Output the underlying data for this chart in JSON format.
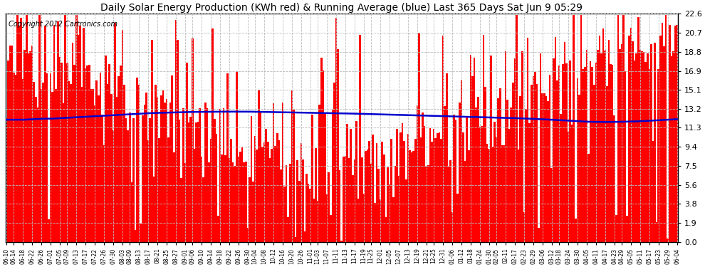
{
  "title": "Daily Solar Energy Production (KWh red) & Running Average (blue) Last 365 Days Sat Jun 9 05:29",
  "copyright": "Copyright 2012 Cartronics.com",
  "yticks": [
    0.0,
    1.9,
    3.8,
    5.6,
    7.5,
    9.4,
    11.3,
    13.2,
    15.1,
    16.9,
    18.8,
    20.7,
    22.6
  ],
  "ymax": 22.6,
  "ymin": 0.0,
  "bar_color": "#ff0000",
  "avg_color": "#0000cc",
  "bg_color": "#ffffff",
  "grid_color": "#bbbbbb",
  "title_fontsize": 10,
  "copyright_fontsize": 7,
  "x_labels": [
    "06-10",
    "06-14",
    "06-18",
    "06-22",
    "06-26",
    "07-01",
    "07-05",
    "07-09",
    "07-13",
    "07-17",
    "07-22",
    "07-26",
    "07-30",
    "08-03",
    "08-09",
    "08-13",
    "08-17",
    "08-21",
    "08-25",
    "08-27",
    "09-01",
    "09-06",
    "09-10",
    "09-14",
    "09-18",
    "09-22",
    "09-26",
    "09-30",
    "10-04",
    "10-08",
    "10-12",
    "10-16",
    "10-20",
    "10-26",
    "11-01",
    "11-03",
    "11-07",
    "11-11",
    "11-13",
    "11-17",
    "11-19",
    "11-25",
    "12-01",
    "12-05",
    "12-07",
    "12-13",
    "12-19",
    "12-21",
    "12-25",
    "12-31",
    "01-06",
    "01-12",
    "01-18",
    "01-24",
    "01-30",
    "02-05",
    "02-11",
    "02-17",
    "02-23",
    "02-29",
    "03-06",
    "03-12",
    "03-18",
    "03-24",
    "03-30",
    "04-05",
    "04-11",
    "04-17",
    "04-23",
    "04-29",
    "05-05",
    "05-11",
    "05-17",
    "05-23",
    "05-29",
    "06-04"
  ],
  "avg_values": [
    12.1,
    12.1,
    12.1,
    12.15,
    12.2,
    12.2,
    12.25,
    12.3,
    12.35,
    12.4,
    12.45,
    12.5,
    12.55,
    12.6,
    12.65,
    12.7,
    12.75,
    12.78,
    12.8,
    12.82,
    12.85,
    12.87,
    12.88,
    12.89,
    12.9,
    12.9,
    12.9,
    12.9,
    12.88,
    12.87,
    12.85,
    12.83,
    12.82,
    12.8,
    12.78,
    12.77,
    12.75,
    12.73,
    12.72,
    12.7,
    12.68,
    12.65,
    12.62,
    12.6,
    12.58,
    12.55,
    12.52,
    12.5,
    12.48,
    12.45,
    12.42,
    12.4,
    12.38,
    12.35,
    12.32,
    12.3,
    12.28,
    12.25,
    12.22,
    12.18,
    12.14,
    12.1,
    12.05,
    12.0,
    11.95,
    11.9,
    11.88,
    11.87,
    11.88,
    11.9,
    11.92,
    11.95,
    12.0,
    12.05,
    12.1,
    12.15
  ]
}
